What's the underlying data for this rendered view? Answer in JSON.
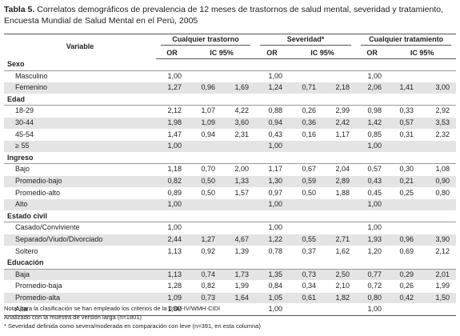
{
  "header": {
    "label": "Tabla 5.",
    "title": "Correlatos demográficos de prevalencia de 12 meses de trastornos de salud mental, severidad y tratamiento, Encuesta Mundial de Salud Mental en el Perú, 2005"
  },
  "table": {
    "columns": {
      "variable": "Variable",
      "groups": [
        "Cualquier trastorno",
        "Severidad*",
        "Cualquier tratamiento"
      ],
      "or": "OR",
      "ic": "IC 95%"
    },
    "sections": [
      {
        "title": "Sexo",
        "rows": [
          [
            "Masculino",
            "1,00",
            null,
            null,
            "1,00",
            null,
            null,
            "1,00",
            null,
            null
          ],
          [
            "Femenino",
            "1,27",
            "0,96",
            "1,69",
            "1,24",
            "0,71",
            "2,18",
            "2,06",
            "1,41",
            "3,00"
          ]
        ]
      },
      {
        "title": "Edad",
        "rows": [
          [
            "18-29",
            "2,12",
            "1,07",
            "4,22",
            "0,88",
            "0,26",
            "2,99",
            "0,98",
            "0,33",
            "2,92"
          ],
          [
            "30-44",
            "1,98",
            "1,09",
            "3,60",
            "0,94",
            "0,36",
            "2,42",
            "1,42",
            "0,57",
            "3,53"
          ],
          [
            "45-54",
            "1,47",
            "0,94",
            "2,31",
            "0,43",
            "0,16",
            "1,17",
            "0,85",
            "0,31",
            "2,32"
          ],
          [
            "≥ 55",
            "1,00",
            null,
            null,
            "1,00",
            null,
            null,
            "1,00",
            null,
            null
          ]
        ]
      },
      {
        "title": "Ingreso",
        "rows": [
          [
            "Bajo",
            "1,18",
            "0,70",
            "2,00",
            "1,17",
            "0,67",
            "2,04",
            "0,57",
            "0,30",
            "1,08"
          ],
          [
            "Promedio-bajo",
            "0,82",
            "0,50",
            "1,33",
            "1,30",
            "0,59",
            "2,89",
            "0,43",
            "0,21",
            "0,90"
          ],
          [
            "Promedio-alto",
            "0,89",
            "0,50",
            "1,57",
            "0,97",
            "0,50",
            "1,88",
            "0,45",
            "0,25",
            "0,80"
          ],
          [
            "Alto",
            "1,00",
            null,
            null,
            "1,00",
            null,
            null,
            "1,00",
            null,
            null
          ]
        ]
      },
      {
        "title": "Estado civil",
        "rows": [
          [
            "Casado/Conviviente",
            "1,00",
            null,
            null,
            "1,00",
            null,
            null,
            "1,00",
            null,
            null
          ],
          [
            "Separado/Viudo/Divorciado",
            "2,44",
            "1,27",
            "4,67",
            "1,22",
            "0,55",
            "2,71",
            "1,93",
            "0,96",
            "3,90"
          ],
          [
            "Soltero",
            "1,13",
            "0,92",
            "1,39",
            "0,78",
            "0,37",
            "1,62",
            "1,20",
            "0,69",
            "2,12"
          ]
        ]
      },
      {
        "title": "Educación",
        "rows": [
          [
            "Baja",
            "1,13",
            "0,74",
            "1,73",
            "1,35",
            "0,73",
            "2,50",
            "0,77",
            "0,29",
            "2,01"
          ],
          [
            "Promedio-baja",
            "1,28",
            "0,82",
            "1,99",
            "0,84",
            "0,34",
            "2,10",
            "0,72",
            "0,26",
            "1,99"
          ],
          [
            "Promedio-alta",
            "1,09",
            "0,73",
            "1,64",
            "1,05",
            "0,61",
            "1,82",
            "0,80",
            "0,42",
            "1,50"
          ],
          [
            "Alta",
            "1,00",
            null,
            null,
            "1,00",
            null,
            null,
            "1,00",
            null,
            null
          ]
        ]
      }
    ]
  },
  "notes": [
    "Nota: para la clasificación se han empleado los criterios de la DSM-IV/WMH-CIDI",
    "Analizado con la muestra de versión larga (n=1801)",
    "* Severidad definida como severa/moderada en comparación con leve (n=391, en esta columna)"
  ]
}
